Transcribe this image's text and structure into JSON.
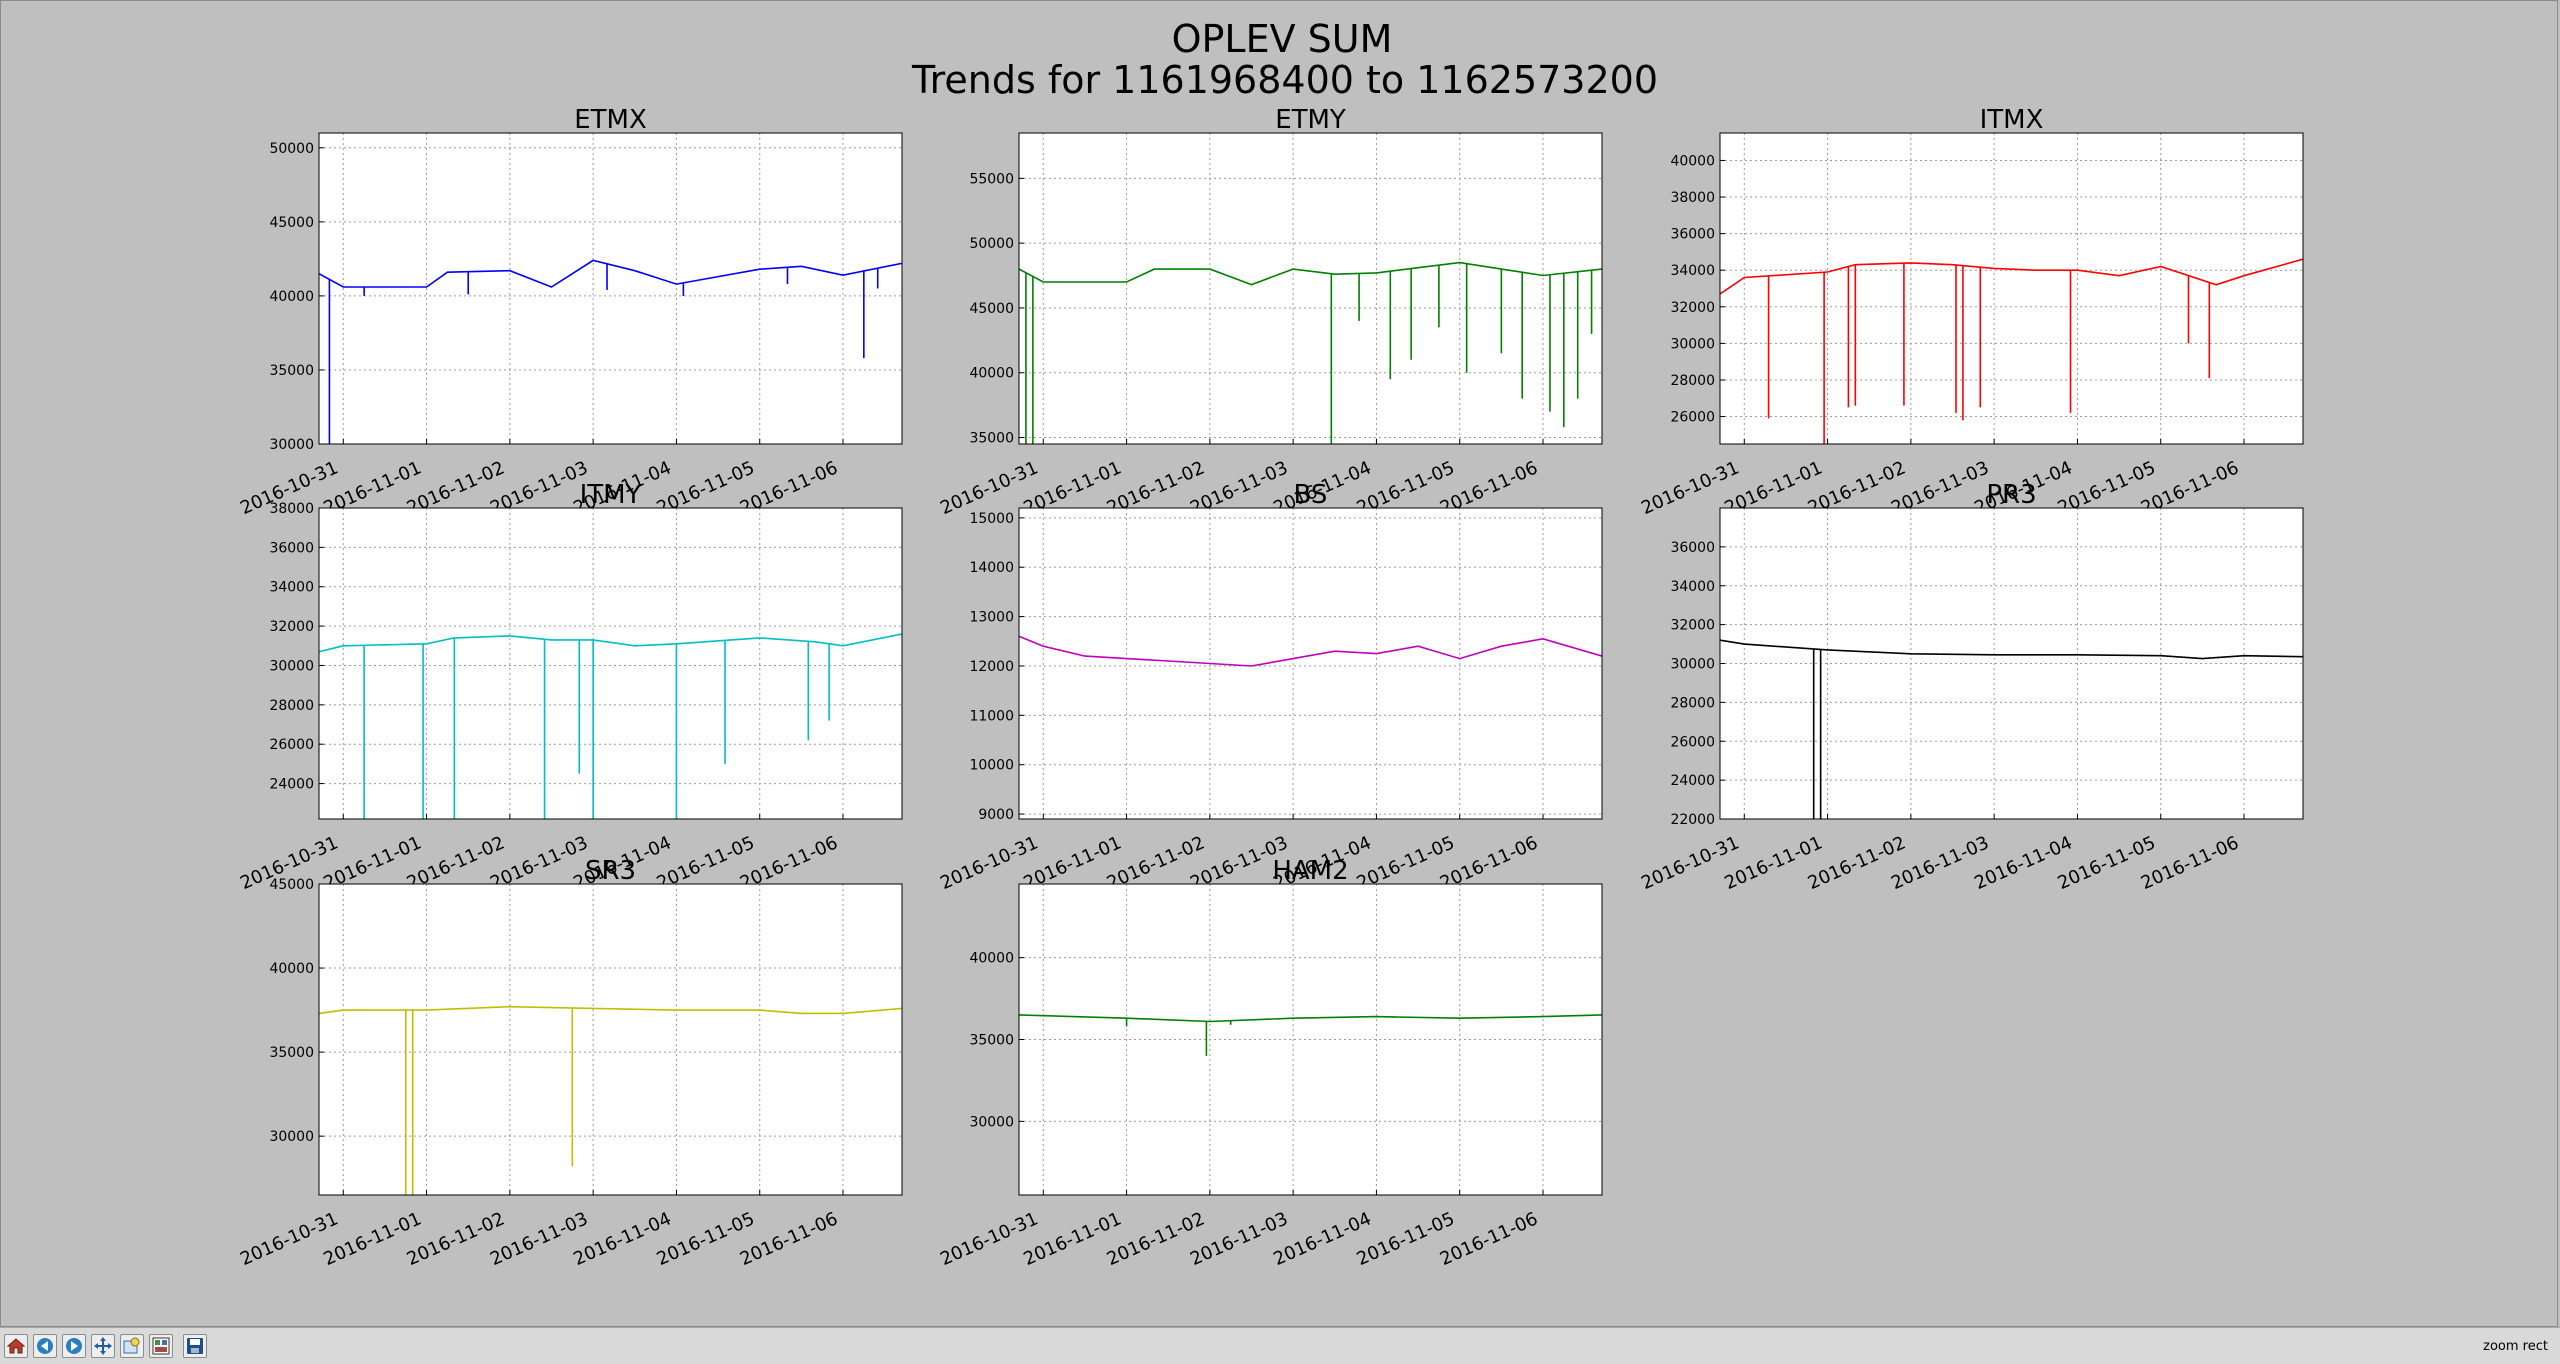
{
  "figure": {
    "title": "OPLEV SUM",
    "subtitle": "Trends for 1161968400 to 1162573200"
  },
  "toolbar": {
    "message": "zoom rect",
    "buttons": [
      {
        "name": "home-button",
        "icon": "home-icon"
      },
      {
        "name": "back-button",
        "icon": "back-arrow-icon"
      },
      {
        "name": "forward-button",
        "icon": "forward-arrow-icon"
      },
      {
        "name": "pan-button",
        "icon": "pan-icon"
      },
      {
        "name": "zoom-button",
        "icon": "zoom-icon"
      },
      {
        "name": "configure-subplots-button",
        "icon": "subplots-icon"
      },
      {
        "name": "save-button",
        "icon": "save-icon"
      }
    ]
  },
  "chart_data": [
    {
      "type": "line",
      "title": "ETMX",
      "color": "#0000ff",
      "xlim": [
        "2016-10-30T17:00",
        "2016-11-06T17:00"
      ],
      "xticks": [
        "2016-10-31",
        "2016-11-01",
        "2016-11-02",
        "2016-11-03",
        "2016-11-04",
        "2016-11-05",
        "2016-11-06"
      ],
      "ylim": [
        30000,
        51000
      ],
      "yticks": [
        30000,
        35000,
        40000,
        45000,
        50000
      ],
      "x": [
        "2016-10-30T17:00",
        "2016-10-31T00:00",
        "2016-11-01T00:00",
        "2016-11-01T06:00",
        "2016-11-02T00:00",
        "2016-11-02T12:00",
        "2016-11-03T00:00",
        "2016-11-03T12:00",
        "2016-11-04T00:00",
        "2016-11-05T00:00",
        "2016-11-05T12:00",
        "2016-11-06T00:00",
        "2016-11-06T17:00"
      ],
      "y": [
        41500,
        40600,
        40600,
        41600,
        41700,
        40600,
        42400,
        41700,
        40800,
        41800,
        42000,
        41400,
        42200
      ],
      "spikes": [
        {
          "x": "2016-10-30T20:00",
          "y": 30000
        },
        {
          "x": "2016-10-31T06:00",
          "y": 40000
        },
        {
          "x": "2016-11-01T12:00",
          "y": 40100
        },
        {
          "x": "2016-11-03T04:00",
          "y": 40400
        },
        {
          "x": "2016-11-04T02:00",
          "y": 40000
        },
        {
          "x": "2016-11-05T08:00",
          "y": 40800
        },
        {
          "x": "2016-11-06T06:00",
          "y": 35800
        },
        {
          "x": "2016-11-06T10:00",
          "y": 40500
        }
      ]
    },
    {
      "type": "line",
      "title": "ETMY",
      "color": "#008000",
      "xlim": [
        "2016-10-30T17:00",
        "2016-11-06T17:00"
      ],
      "xticks": [
        "2016-10-31",
        "2016-11-01",
        "2016-11-02",
        "2016-11-03",
        "2016-11-04",
        "2016-11-05",
        "2016-11-06"
      ],
      "ylim": [
        34500,
        58500
      ],
      "yticks": [
        35000,
        40000,
        45000,
        50000,
        55000
      ],
      "x": [
        "2016-10-30T17:00",
        "2016-10-31T00:00",
        "2016-11-01T00:00",
        "2016-11-01T08:00",
        "2016-11-02T00:00",
        "2016-11-02T12:00",
        "2016-11-03T00:00",
        "2016-11-03T12:00",
        "2016-11-04T00:00",
        "2016-11-05T00:00",
        "2016-11-05T12:00",
        "2016-11-06T00:00",
        "2016-11-06T17:00"
      ],
      "y": [
        48000,
        47000,
        47000,
        48000,
        48000,
        46800,
        48000,
        47600,
        47700,
        48500,
        48000,
        47500,
        48000
      ],
      "spikes": [
        {
          "x": "2016-10-30T19:00",
          "y": 34500
        },
        {
          "x": "2016-10-30T21:00",
          "y": 34500
        },
        {
          "x": "2016-11-03T11:00",
          "y": 34500
        },
        {
          "x": "2016-11-03T19:00",
          "y": 44000
        },
        {
          "x": "2016-11-04T04:00",
          "y": 39500
        },
        {
          "x": "2016-11-04T10:00",
          "y": 41000
        },
        {
          "x": "2016-11-04T18:00",
          "y": 43500
        },
        {
          "x": "2016-11-05T02:00",
          "y": 40000
        },
        {
          "x": "2016-11-05T12:00",
          "y": 41500
        },
        {
          "x": "2016-11-05T18:00",
          "y": 38000
        },
        {
          "x": "2016-11-06T02:00",
          "y": 37000
        },
        {
          "x": "2016-11-06T06:00",
          "y": 35800
        },
        {
          "x": "2016-11-06T10:00",
          "y": 38000
        },
        {
          "x": "2016-11-06T14:00",
          "y": 43000
        }
      ]
    },
    {
      "type": "line",
      "title": "ITMX",
      "color": "#ff0000",
      "xlim": [
        "2016-10-30T17:00",
        "2016-11-06T17:00"
      ],
      "xticks": [
        "2016-10-31",
        "2016-11-01",
        "2016-11-02",
        "2016-11-03",
        "2016-11-04",
        "2016-11-05",
        "2016-11-06"
      ],
      "ylim": [
        24500,
        41500
      ],
      "yticks": [
        26000,
        28000,
        30000,
        32000,
        34000,
        36000,
        38000,
        40000
      ],
      "x": [
        "2016-10-30T17:00",
        "2016-10-31T00:00",
        "2016-11-01T00:00",
        "2016-11-01T08:00",
        "2016-11-02T00:00",
        "2016-11-02T12:00",
        "2016-11-03T00:00",
        "2016-11-03T12:00",
        "2016-11-04T00:00",
        "2016-11-04T12:00",
        "2016-11-05T00:00",
        "2016-11-05T16:00",
        "2016-11-06T00:00",
        "2016-11-06T17:00"
      ],
      "y": [
        32700,
        33600,
        33900,
        34300,
        34400,
        34300,
        34100,
        34000,
        34000,
        33700,
        34200,
        33200,
        33700,
        34600
      ],
      "spikes": [
        {
          "x": "2016-10-31T07:00",
          "y": 25900
        },
        {
          "x": "2016-10-31T23:00",
          "y": 24500
        },
        {
          "x": "2016-11-01T06:00",
          "y": 26500
        },
        {
          "x": "2016-11-01T08:00",
          "y": 26600
        },
        {
          "x": "2016-11-01T22:00",
          "y": 26600
        },
        {
          "x": "2016-11-02T13:00",
          "y": 26200
        },
        {
          "x": "2016-11-02T15:00",
          "y": 25800
        },
        {
          "x": "2016-11-02T20:00",
          "y": 26500
        },
        {
          "x": "2016-11-03T22:00",
          "y": 26200
        },
        {
          "x": "2016-11-05T08:00",
          "y": 30000
        },
        {
          "x": "2016-11-05T14:00",
          "y": 28100
        }
      ]
    },
    {
      "type": "line",
      "title": "ITMY",
      "color": "#00bfbf",
      "xlim": [
        "2016-10-30T17:00",
        "2016-11-06T17:00"
      ],
      "xticks": [
        "2016-10-31",
        "2016-11-01",
        "2016-11-02",
        "2016-11-03",
        "2016-11-04",
        "2016-11-05",
        "2016-11-06"
      ],
      "ylim": [
        22200,
        38000
      ],
      "yticks": [
        24000,
        26000,
        28000,
        30000,
        32000,
        34000,
        36000,
        38000
      ],
      "x": [
        "2016-10-30T17:00",
        "2016-10-31T00:00",
        "2016-11-01T00:00",
        "2016-11-01T08:00",
        "2016-11-02T00:00",
        "2016-11-02T12:00",
        "2016-11-03T00:00",
        "2016-11-03T12:00",
        "2016-11-04T00:00",
        "2016-11-05T00:00",
        "2016-11-05T16:00",
        "2016-11-06T00:00",
        "2016-11-06T17:00"
      ],
      "y": [
        30700,
        31000,
        31100,
        31400,
        31500,
        31300,
        31300,
        31000,
        31100,
        31400,
        31200,
        31000,
        31600
      ],
      "spikes": [
        {
          "x": "2016-10-31T06:00",
          "y": 22200
        },
        {
          "x": "2016-10-31T23:00",
          "y": 22200
        },
        {
          "x": "2016-11-01T08:00",
          "y": 22200
        },
        {
          "x": "2016-11-02T10:00",
          "y": 22200
        },
        {
          "x": "2016-11-02T20:00",
          "y": 24500
        },
        {
          "x": "2016-11-03T00:00",
          "y": 22200
        },
        {
          "x": "2016-11-04T00:00",
          "y": 22200
        },
        {
          "x": "2016-11-04T14:00",
          "y": 25000
        },
        {
          "x": "2016-11-05T14:00",
          "y": 26200
        },
        {
          "x": "2016-11-05T20:00",
          "y": 27200
        }
      ]
    },
    {
      "type": "line",
      "title": "BS",
      "color": "#bf00bf",
      "xlim": [
        "2016-10-30T17:00",
        "2016-11-06T17:00"
      ],
      "xticks": [
        "2016-10-31",
        "2016-11-01",
        "2016-11-02",
        "2016-11-03",
        "2016-11-04",
        "2016-11-05",
        "2016-11-06"
      ],
      "ylim": [
        8900,
        15200
      ],
      "yticks": [
        9000,
        10000,
        11000,
        12000,
        13000,
        14000,
        15000
      ],
      "x": [
        "2016-10-30T17:00",
        "2016-10-31T00:00",
        "2016-10-31T12:00",
        "2016-11-01T00:00",
        "2016-11-01T12:00",
        "2016-11-02T00:00",
        "2016-11-02T12:00",
        "2016-11-03T00:00",
        "2016-11-03T12:00",
        "2016-11-04T00:00",
        "2016-11-04T12:00",
        "2016-11-05T00:00",
        "2016-11-05T12:00",
        "2016-11-06T00:00",
        "2016-11-06T17:00"
      ],
      "y": [
        12600,
        12400,
        12200,
        12150,
        12100,
        12050,
        12000,
        12150,
        12300,
        12250,
        12400,
        12150,
        12400,
        12550,
        12200
      ],
      "spikes": []
    },
    {
      "type": "line",
      "title": "PR3",
      "color": "#000000",
      "xlim": [
        "2016-10-30T17:00",
        "2016-11-06T17:00"
      ],
      "xticks": [
        "2016-10-31",
        "2016-11-01",
        "2016-11-02",
        "2016-11-03",
        "2016-11-04",
        "2016-11-05",
        "2016-11-06"
      ],
      "ylim": [
        22000,
        38000
      ],
      "yticks": [
        22000,
        24000,
        26000,
        28000,
        30000,
        32000,
        34000,
        36000
      ],
      "x": [
        "2016-10-30T17:00",
        "2016-10-31T00:00",
        "2016-11-01T00:00",
        "2016-11-02T00:00",
        "2016-11-03T00:00",
        "2016-11-04T00:00",
        "2016-11-05T00:00",
        "2016-11-05T12:00",
        "2016-11-06T00:00",
        "2016-11-06T17:00"
      ],
      "y": [
        31200,
        31000,
        30700,
        30500,
        30450,
        30450,
        30400,
        30250,
        30400,
        30350
      ],
      "spikes": [
        {
          "x": "2016-10-31T20:00",
          "y": 22000
        },
        {
          "x": "2016-10-31T22:00",
          "y": 22000
        }
      ]
    },
    {
      "type": "line",
      "title": "SR3",
      "color": "#bfbf00",
      "xlim": [
        "2016-10-30T17:00",
        "2016-11-06T17:00"
      ],
      "xticks": [
        "2016-10-31",
        "2016-11-01",
        "2016-11-02",
        "2016-11-03",
        "2016-11-04",
        "2016-11-05",
        "2016-11-06"
      ],
      "ylim": [
        26500,
        45000
      ],
      "yticks": [
        30000,
        35000,
        40000,
        45000
      ],
      "x": [
        "2016-10-30T17:00",
        "2016-10-31T00:00",
        "2016-11-01T00:00",
        "2016-11-02T00:00",
        "2016-11-03T00:00",
        "2016-11-04T00:00",
        "2016-11-05T00:00",
        "2016-11-05T12:00",
        "2016-11-06T00:00",
        "2016-11-06T17:00"
      ],
      "y": [
        37300,
        37500,
        37500,
        37700,
        37600,
        37500,
        37500,
        37300,
        37300,
        37600
      ],
      "spikes": [
        {
          "x": "2016-10-31T18:00",
          "y": 26500
        },
        {
          "x": "2016-10-31T20:00",
          "y": 26500
        },
        {
          "x": "2016-11-02T18:00",
          "y": 28200
        }
      ]
    },
    {
      "type": "line",
      "title": "HAM2",
      "color": "#008000",
      "xlim": [
        "2016-10-30T17:00",
        "2016-11-06T17:00"
      ],
      "xticks": [
        "2016-10-31",
        "2016-11-01",
        "2016-11-02",
        "2016-11-03",
        "2016-11-04",
        "2016-11-05",
        "2016-11-06"
      ],
      "ylim": [
        25500,
        44500
      ],
      "yticks": [
        30000,
        35000,
        40000
      ],
      "x": [
        "2016-10-30T17:00",
        "2016-11-01T00:00",
        "2016-11-02T00:00",
        "2016-11-03T00:00",
        "2016-11-04T00:00",
        "2016-11-05T00:00",
        "2016-11-06T00:00",
        "2016-11-06T17:00"
      ],
      "y": [
        36500,
        36300,
        36100,
        36300,
        36400,
        36300,
        36400,
        36500
      ],
      "spikes": [
        {
          "x": "2016-11-01T00:00",
          "y": 35800
        },
        {
          "x": "2016-11-01T23:00",
          "y": 34000
        },
        {
          "x": "2016-11-02T06:00",
          "y": 35900
        }
      ]
    }
  ]
}
